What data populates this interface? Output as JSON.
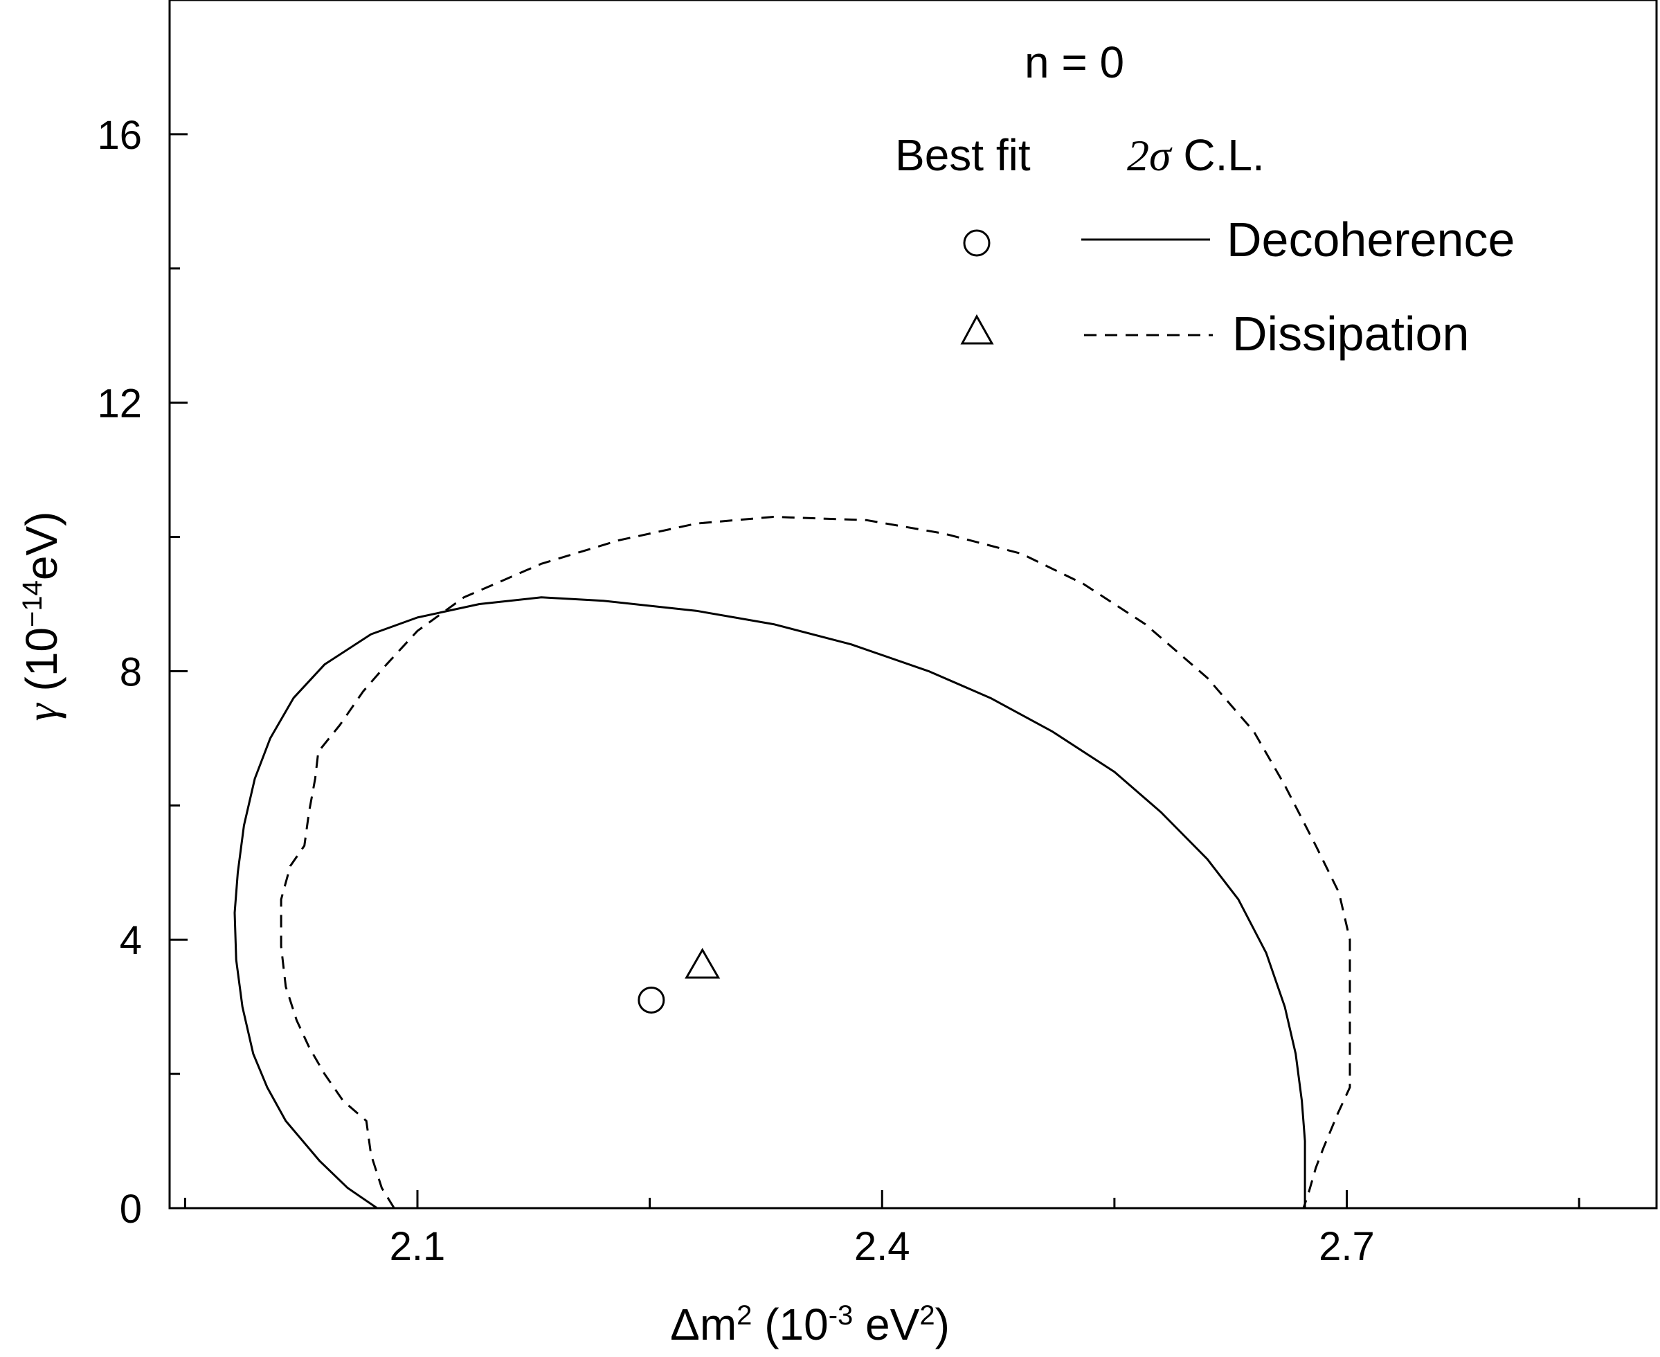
{
  "chart_data": {
    "type": "line",
    "title": "n = 0",
    "xlabel": {
      "main": "Δm",
      "sup1": "2",
      "mid": " (10",
      "sup2": "-3",
      "mid2": " eV",
      "sup3": "2",
      "end": ")"
    },
    "ylabel": {
      "sym": "γ",
      "mid": " (10",
      "sup": "−14",
      "end": "eV)"
    },
    "xlim": [
      1.94,
      2.9
    ],
    "ylim": [
      0,
      18
    ],
    "x_ticks": [
      2.1,
      2.4,
      2.7
    ],
    "x_tick_labels": [
      "2.1",
      "2.4",
      "2.7"
    ],
    "y_ticks": [
      0,
      4,
      8,
      12,
      16
    ],
    "y_tick_labels": [
      "0",
      "4",
      "8",
      "12",
      "16"
    ],
    "grid": false,
    "legend": {
      "placement": "top-right",
      "header_left": "Best fit",
      "header_sym": "2σ",
      "header_right": " C.L.",
      "entries": [
        {
          "marker": "circle",
          "line": "solid",
          "label": "Decoherence"
        },
        {
          "marker": "triangle",
          "line": "dashed",
          "label": "Dissipation"
        }
      ]
    },
    "series": [
      {
        "name": "Decoherence",
        "style": "solid",
        "best_fit": {
          "x": 2.251,
          "y": 3.1
        },
        "points": [
          [
            2.074,
            0.0
          ],
          [
            2.055,
            0.3
          ],
          [
            2.037,
            0.7
          ],
          [
            2.015,
            1.3
          ],
          [
            2.003,
            1.8
          ],
          [
            1.994,
            2.3
          ],
          [
            1.987,
            3.0
          ],
          [
            1.983,
            3.7
          ],
          [
            1.982,
            4.4
          ],
          [
            1.984,
            5.0
          ],
          [
            1.988,
            5.7
          ],
          [
            1.995,
            6.4
          ],
          [
            2.005,
            7.0
          ],
          [
            2.02,
            7.6
          ],
          [
            2.04,
            8.1
          ],
          [
            2.07,
            8.55
          ],
          [
            2.1,
            8.8
          ],
          [
            2.14,
            9.0
          ],
          [
            2.18,
            9.1
          ],
          [
            2.22,
            9.05
          ],
          [
            2.28,
            8.9
          ],
          [
            2.33,
            8.7
          ],
          [
            2.38,
            8.4
          ],
          [
            2.43,
            8.0
          ],
          [
            2.47,
            7.6
          ],
          [
            2.51,
            7.1
          ],
          [
            2.55,
            6.5
          ],
          [
            2.58,
            5.9
          ],
          [
            2.61,
            5.2
          ],
          [
            2.63,
            4.6
          ],
          [
            2.648,
            3.8
          ],
          [
            2.66,
            3.0
          ],
          [
            2.667,
            2.3
          ],
          [
            2.671,
            1.6
          ],
          [
            2.673,
            1.0
          ],
          [
            2.673,
            0.4
          ],
          [
            2.673,
            0.0
          ]
        ]
      },
      {
        "name": "Dissipation",
        "style": "dashed",
        "best_fit": {
          "x": 2.284,
          "y": 3.6
        },
        "points": [
          [
            2.085,
            0.0
          ],
          [
            2.077,
            0.3
          ],
          [
            2.07,
            0.8
          ],
          [
            2.067,
            1.3
          ],
          [
            2.052,
            1.6
          ],
          [
            2.04,
            2.0
          ],
          [
            2.03,
            2.4
          ],
          [
            2.022,
            2.8
          ],
          [
            2.015,
            3.3
          ],
          [
            2.012,
            3.9
          ],
          [
            2.012,
            4.6
          ],
          [
            2.018,
            5.1
          ],
          [
            2.027,
            5.4
          ],
          [
            2.03,
            5.9
          ],
          [
            2.034,
            6.4
          ],
          [
            2.036,
            6.8
          ],
          [
            2.05,
            7.2
          ],
          [
            2.065,
            7.7
          ],
          [
            2.08,
            8.1
          ],
          [
            2.1,
            8.6
          ],
          [
            2.13,
            9.1
          ],
          [
            2.18,
            9.6
          ],
          [
            2.23,
            9.95
          ],
          [
            2.28,
            10.2
          ],
          [
            2.33,
            10.3
          ],
          [
            2.39,
            10.25
          ],
          [
            2.44,
            10.05
          ],
          [
            2.49,
            9.75
          ],
          [
            2.53,
            9.3
          ],
          [
            2.57,
            8.7
          ],
          [
            2.61,
            7.9
          ],
          [
            2.64,
            7.1
          ],
          [
            2.66,
            6.3
          ],
          [
            2.68,
            5.4
          ],
          [
            2.695,
            4.7
          ],
          [
            2.702,
            4.0
          ],
          [
            2.702,
            3.2
          ],
          [
            2.702,
            2.4
          ],
          [
            2.702,
            1.8
          ],
          [
            2.694,
            1.4
          ],
          [
            2.685,
            0.9
          ],
          [
            2.68,
            0.6
          ],
          [
            2.675,
            0.2
          ],
          [
            2.672,
            0.0
          ]
        ]
      }
    ]
  },
  "colors": {
    "line": "#000000",
    "background": "#ffffff"
  }
}
